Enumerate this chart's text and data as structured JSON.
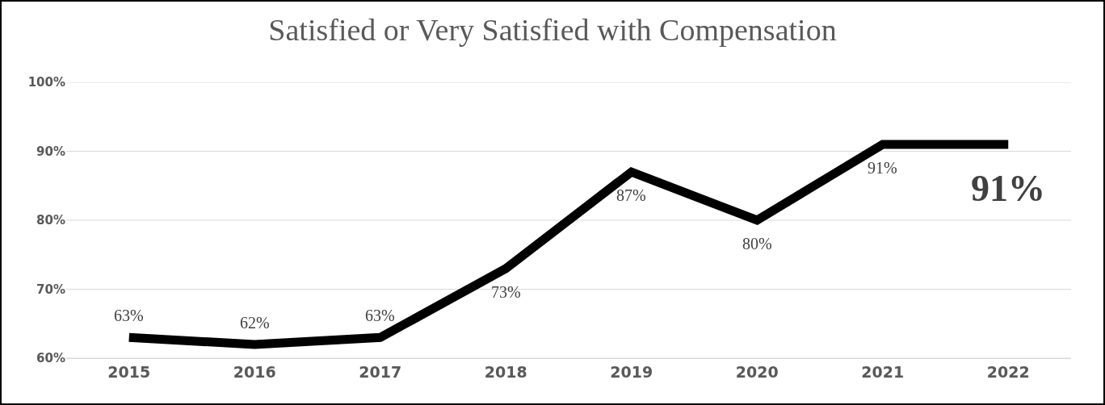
{
  "chart_data": {
    "type": "line",
    "title": "Satisfied or Very Satisfied with Compensation",
    "categories": [
      "2015",
      "2016",
      "2017",
      "2018",
      "2019",
      "2020",
      "2021",
      "2022"
    ],
    "series": [
      {
        "color": "#000000",
        "values": [
          63,
          62,
          63,
          73,
          87,
          80,
          91,
          91
        ]
      }
    ],
    "value_labels": [
      "63%",
      "62%",
      "63%",
      "73%",
      "87%",
      "80%",
      "91%",
      "91%"
    ],
    "ylim": [
      60,
      100
    ],
    "yticks": [
      {
        "value": 60,
        "label": "60%"
      },
      {
        "value": 70,
        "label": "70%"
      },
      {
        "value": 80,
        "label": "80%"
      },
      {
        "value": 90,
        "label": "90%"
      },
      {
        "value": 100,
        "label": "100%"
      }
    ],
    "grid": "y",
    "marker": "none",
    "line_style": "solid"
  }
}
